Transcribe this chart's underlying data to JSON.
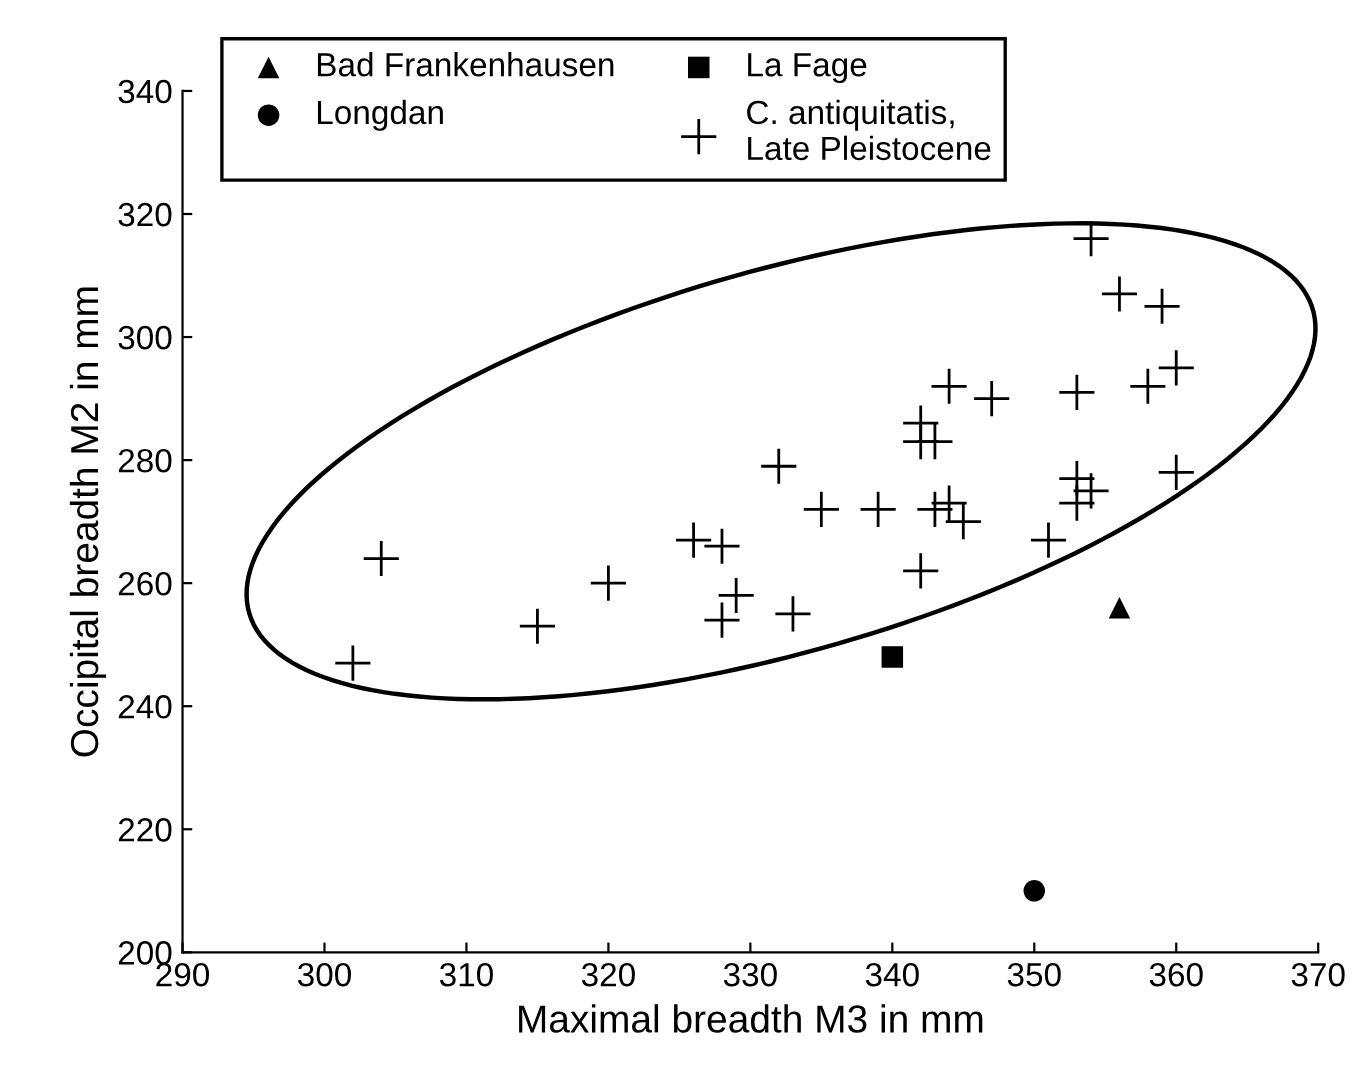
{
  "chart_data": {
    "type": "scatter",
    "xlabel": "Maximal breadth M3 in mm",
    "ylabel": "Occipital breadth M2 in mm",
    "xlim": [
      290,
      370
    ],
    "ylim": [
      200,
      340
    ],
    "xticks": [
      290,
      300,
      310,
      320,
      330,
      340,
      350,
      360,
      370
    ],
    "yticks": [
      200,
      220,
      240,
      260,
      280,
      300,
      320,
      340
    ],
    "grid": false,
    "legend": "top left",
    "series": [
      {
        "name": "Bad Frankenhausen",
        "color": "#000000",
        "marker": "triangle",
        "x": [
          356
        ],
        "values": [
          256
        ]
      },
      {
        "name": "La Fage",
        "color": "#000000",
        "marker": "square",
        "x": [
          340
        ],
        "values": [
          248
        ]
      },
      {
        "name": "Longdan",
        "color": "#000000",
        "marker": "circle",
        "x": [
          350
        ],
        "values": [
          210
        ]
      },
      {
        "name": "C. antiquitatis,\nLate Pleistocene",
        "color": "#000000",
        "marker": "cross",
        "x": [
          302,
          304,
          315,
          320,
          326,
          328,
          328,
          329,
          332,
          333,
          335,
          339,
          342,
          342,
          342,
          343,
          343,
          344,
          344,
          345,
          347,
          351,
          353,
          353,
          353,
          354,
          354,
          356,
          358,
          359,
          360,
          360
        ],
        "values": [
          247,
          264,
          253,
          260,
          267,
          266,
          254,
          258,
          279,
          255,
          272,
          272,
          286,
          283,
          262,
          283,
          272,
          292,
          273,
          270,
          290,
          267,
          291,
          277,
          273,
          316,
          275,
          307,
          292,
          305,
          295,
          278
        ]
      }
    ]
  }
}
